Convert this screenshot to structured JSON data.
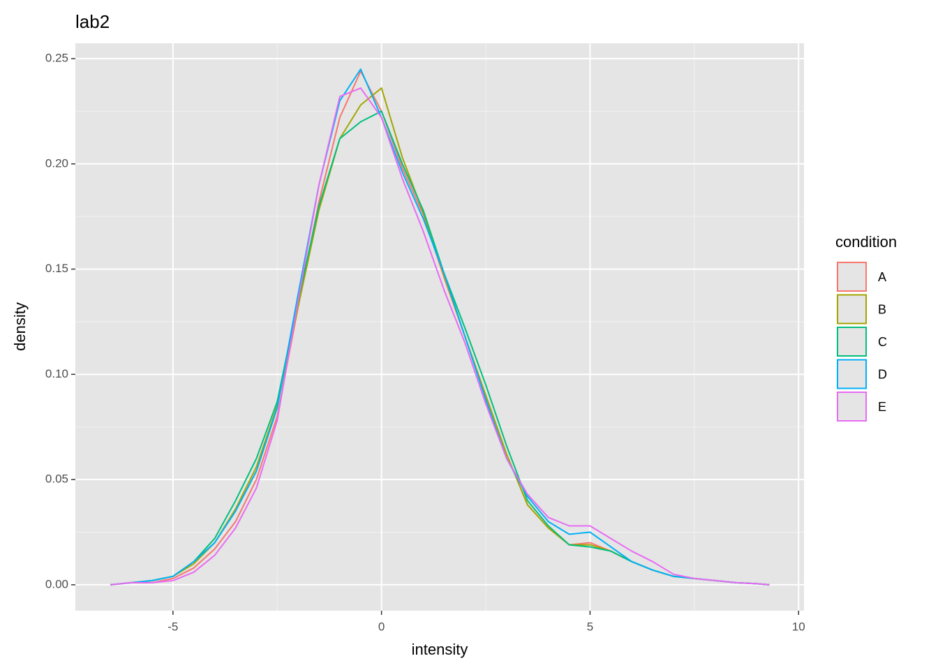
{
  "chart_data": {
    "type": "line",
    "title": "lab2",
    "x_label": "intensity",
    "y_label": "density",
    "legend_title": "condition",
    "x": [
      -6.5,
      -6,
      -5.5,
      -5,
      -4.5,
      -4,
      -3.5,
      -3,
      -2.5,
      -2,
      -1.5,
      -1,
      -0.5,
      0,
      0.5,
      1,
      1.5,
      2,
      2.5,
      3,
      3.5,
      4,
      4.5,
      5,
      5.5,
      6,
      6.5,
      7,
      7.5,
      8,
      8.5,
      9,
      9.3
    ],
    "series": [
      {
        "name": "A",
        "color": "#f8766d",
        "values": [
          0,
          0.001,
          0.001,
          0.003,
          0.008,
          0.017,
          0.03,
          0.05,
          0.08,
          0.132,
          0.182,
          0.222,
          0.244,
          0.225,
          0.198,
          0.176,
          0.146,
          0.118,
          0.09,
          0.062,
          0.038,
          0.027,
          0.019,
          0.02,
          0.016,
          0.011,
          0.007,
          0.004,
          0.003,
          0.002,
          0.001,
          0.0005,
          0
        ]
      },
      {
        "name": "B",
        "color": "#a3a500",
        "values": [
          0,
          0.001,
          0.002,
          0.004,
          0.01,
          0.02,
          0.036,
          0.056,
          0.085,
          0.132,
          0.178,
          0.212,
          0.228,
          0.236,
          0.203,
          0.177,
          0.147,
          0.118,
          0.09,
          0.062,
          0.038,
          0.027,
          0.019,
          0.019,
          0.016,
          0.011,
          0.007,
          0.004,
          0.003,
          0.002,
          0.001,
          0.0005,
          0
        ]
      },
      {
        "name": "C",
        "color": "#00bf7d",
        "values": [
          0,
          0.001,
          0.002,
          0.004,
          0.011,
          0.022,
          0.04,
          0.06,
          0.087,
          0.135,
          0.18,
          0.212,
          0.22,
          0.225,
          0.2,
          0.178,
          0.148,
          0.122,
          0.095,
          0.066,
          0.04,
          0.028,
          0.019,
          0.018,
          0.016,
          0.011,
          0.007,
          0.004,
          0.003,
          0.002,
          0.001,
          0.0005,
          0
        ]
      },
      {
        "name": "D",
        "color": "#00b0f6",
        "values": [
          0,
          0.001,
          0.002,
          0.004,
          0.011,
          0.02,
          0.035,
          0.054,
          0.084,
          0.138,
          0.19,
          0.23,
          0.245,
          0.222,
          0.196,
          0.174,
          0.148,
          0.118,
          0.088,
          0.06,
          0.042,
          0.03,
          0.024,
          0.025,
          0.018,
          0.011,
          0.007,
          0.004,
          0.003,
          0.002,
          0.001,
          0.0005,
          0
        ]
      },
      {
        "name": "E",
        "color": "#e76bf3",
        "values": [
          0,
          0.001,
          0.001,
          0.002,
          0.006,
          0.014,
          0.027,
          0.046,
          0.078,
          0.135,
          0.19,
          0.232,
          0.236,
          0.222,
          0.193,
          0.168,
          0.14,
          0.115,
          0.086,
          0.06,
          0.043,
          0.032,
          0.028,
          0.028,
          0.022,
          0.016,
          0.011,
          0.005,
          0.003,
          0.002,
          0.001,
          0.0005,
          0
        ]
      }
    ],
    "xlim": [
      -7.34,
      10.13
    ],
    "xticks": [
      -5,
      0,
      5,
      10
    ],
    "ylim": [
      -0.0123,
      0.2573
    ],
    "yticks": [
      {
        "value": 0,
        "label": "0.00"
      },
      {
        "value": 0.05,
        "label": "0.05"
      },
      {
        "value": 0.1,
        "label": "0.10"
      },
      {
        "value": 0.15,
        "label": "0.15"
      },
      {
        "value": 0.2,
        "label": "0.20"
      },
      {
        "value": 0.25,
        "label": "0.25"
      }
    ],
    "grid": true
  }
}
